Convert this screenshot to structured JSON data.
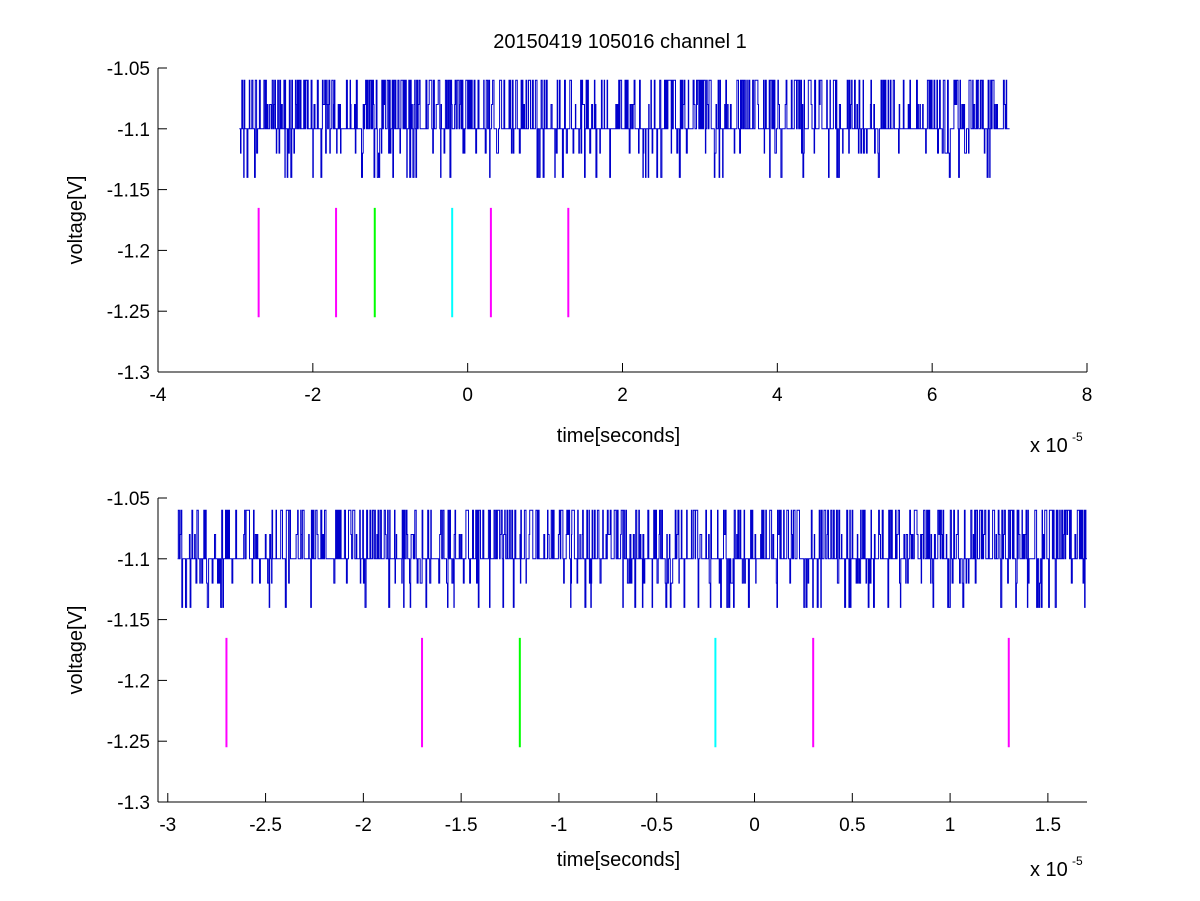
{
  "figure": {
    "title": "20150419 105016 channel 1"
  },
  "chart_data": [
    {
      "type": "line",
      "title": "20150419 105016 channel 1",
      "xlabel": "time[seconds]",
      "ylabel": "voltage[V]",
      "x_multiplier_label": "x 10",
      "x_multiplier_exp": "-5",
      "xlim": [
        -4,
        8
      ],
      "ylim": [
        -1.3,
        -1.05
      ],
      "xticks": [
        -4,
        -2,
        0,
        2,
        4,
        6,
        8
      ],
      "xtick_labels": [
        "-4",
        "-2",
        "0",
        "2",
        "4",
        "6",
        "8"
      ],
      "yticks": [
        -1.05,
        -1.1,
        -1.15,
        -1.2,
        -1.25,
        -1.3
      ],
      "ytick_labels": [
        "-1.05",
        "-1.1",
        "-1.15",
        "-1.2",
        "-1.25",
        "-1.3"
      ],
      "grid": false,
      "series": [
        {
          "style": "noisy-trace",
          "color": "#0000cc",
          "x_range": [
            -2.95,
            7.0
          ],
          "baseline": -1.1,
          "levels": [
            -1.06,
            -1.08,
            -1.1,
            -1.12,
            -1.14
          ]
        }
      ],
      "markers": [
        {
          "x": -2.7,
          "y_top": -1.165,
          "y_bottom": -1.255,
          "color": "#ff00ff"
        },
        {
          "x": -1.7,
          "y_top": -1.165,
          "y_bottom": -1.255,
          "color": "#ff00ff"
        },
        {
          "x": -1.2,
          "y_top": -1.165,
          "y_bottom": -1.255,
          "color": "#00ff00"
        },
        {
          "x": -0.2,
          "y_top": -1.165,
          "y_bottom": -1.255,
          "color": "#00ffff"
        },
        {
          "x": 0.3,
          "y_top": -1.165,
          "y_bottom": -1.255,
          "color": "#ff00ff"
        },
        {
          "x": 1.3,
          "y_top": -1.165,
          "y_bottom": -1.255,
          "color": "#ff00ff"
        }
      ]
    },
    {
      "type": "line",
      "title": "",
      "xlabel": "time[seconds]",
      "ylabel": "voltage[V]",
      "x_multiplier_label": "x 10",
      "x_multiplier_exp": "-5",
      "xlim": [
        -3.05,
        1.7
      ],
      "ylim": [
        -1.3,
        -1.05
      ],
      "xticks": [
        -3,
        -2.5,
        -2,
        -1.5,
        -1,
        -0.5,
        0,
        0.5,
        1,
        1.5
      ],
      "xtick_labels": [
        "-3",
        "-2.5",
        "-2",
        "-1.5",
        "-1",
        "-0.5",
        "0",
        "0.5",
        "1",
        "1.5"
      ],
      "yticks": [
        -1.05,
        -1.1,
        -1.15,
        -1.2,
        -1.25,
        -1.3
      ],
      "ytick_labels": [
        "-1.05",
        "-1.1",
        "-1.15",
        "-1.2",
        "-1.25",
        "-1.3"
      ],
      "grid": false,
      "series": [
        {
          "style": "noisy-trace",
          "color": "#0000cc",
          "x_range": [
            -2.95,
            1.7
          ],
          "baseline": -1.1,
          "levels": [
            -1.06,
            -1.08,
            -1.1,
            -1.12,
            -1.14
          ]
        }
      ],
      "markers": [
        {
          "x": -2.7,
          "y_top": -1.165,
          "y_bottom": -1.255,
          "color": "#ff00ff"
        },
        {
          "x": -1.7,
          "y_top": -1.165,
          "y_bottom": -1.255,
          "color": "#ff00ff"
        },
        {
          "x": -1.2,
          "y_top": -1.165,
          "y_bottom": -1.255,
          "color": "#00ff00"
        },
        {
          "x": -0.2,
          "y_top": -1.165,
          "y_bottom": -1.255,
          "color": "#00ffff"
        },
        {
          "x": 0.3,
          "y_top": -1.165,
          "y_bottom": -1.255,
          "color": "#ff00ff"
        },
        {
          "x": 1.3,
          "y_top": -1.165,
          "y_bottom": -1.255,
          "color": "#ff00ff"
        }
      ]
    }
  ]
}
